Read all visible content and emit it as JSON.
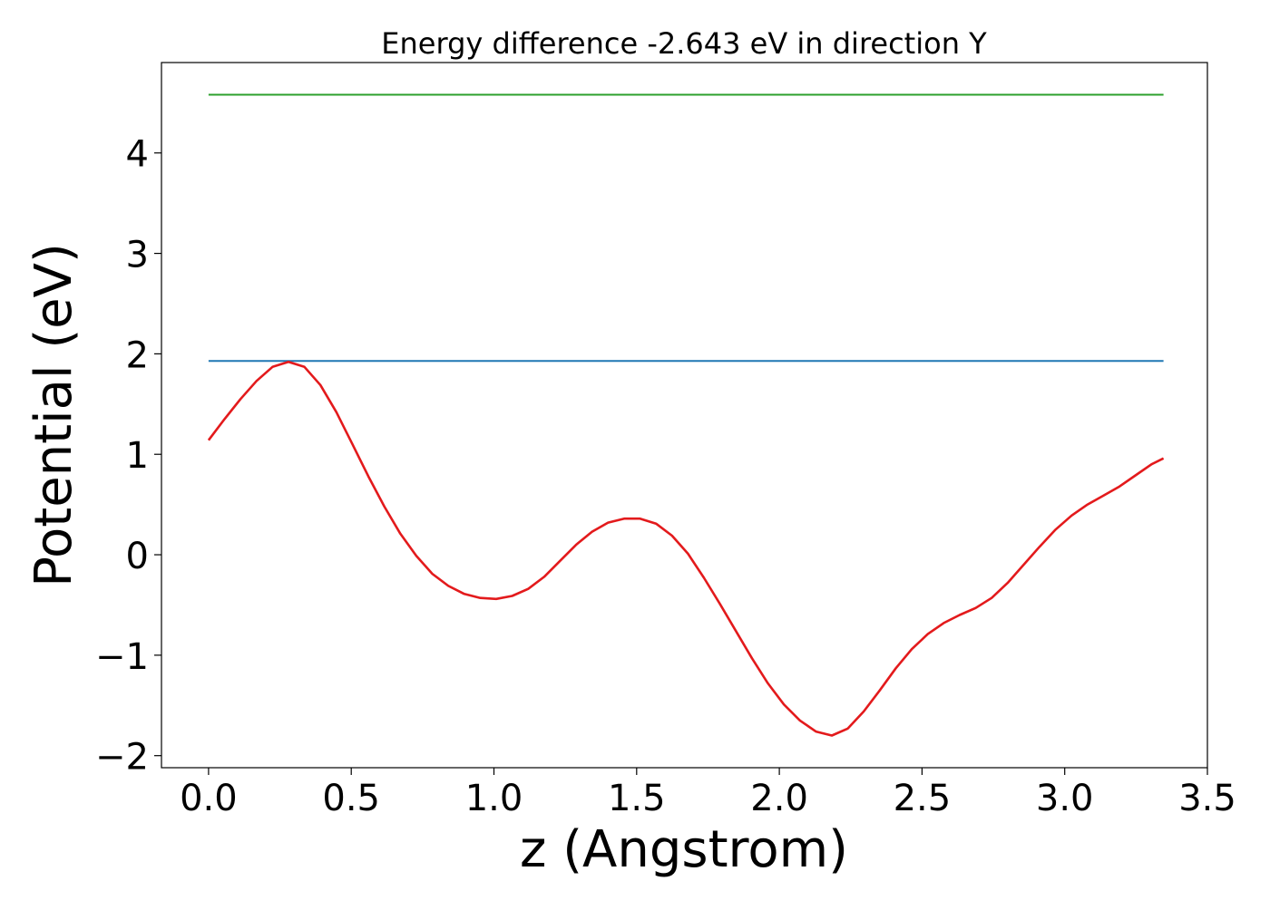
{
  "chart_data": {
    "type": "line",
    "title": "Energy difference -2.643 eV in direction Y",
    "xlabel": "z (Angstrom)",
    "ylabel": "Potential (eV)",
    "xlim": [
      -0.165,
      3.5
    ],
    "ylim": [
      -2.12,
      4.9
    ],
    "grid": false,
    "x_ticks": [
      {
        "value": 0.0,
        "label": "0.0"
      },
      {
        "value": 0.5,
        "label": "0.5"
      },
      {
        "value": 1.0,
        "label": "1.0"
      },
      {
        "value": 1.5,
        "label": "1.5"
      },
      {
        "value": 2.0,
        "label": "2.0"
      },
      {
        "value": 2.5,
        "label": "2.5"
      },
      {
        "value": 3.0,
        "label": "3.0"
      },
      {
        "value": 3.5,
        "label": "3.5"
      }
    ],
    "y_ticks": [
      {
        "value": -2,
        "label": "−2"
      },
      {
        "value": -1,
        "label": "−1"
      },
      {
        "value": 0,
        "label": "0"
      },
      {
        "value": 1,
        "label": "1"
      },
      {
        "value": 2,
        "label": "2"
      },
      {
        "value": 3,
        "label": "3"
      },
      {
        "value": 4,
        "label": "4"
      }
    ],
    "series": [
      {
        "color": "#2ca02c",
        "x": [
          0.0,
          3.346
        ],
        "y": [
          4.58,
          4.58
        ]
      },
      {
        "color": "#1f77b4",
        "x": [
          0.0,
          3.346
        ],
        "y": [
          1.93,
          1.93
        ]
      },
      {
        "color": "#e31a1c",
        "x": [
          0.0,
          0.056,
          0.112,
          0.168,
          0.224,
          0.28,
          0.336,
          0.392,
          0.448,
          0.504,
          0.56,
          0.616,
          0.672,
          0.728,
          0.784,
          0.84,
          0.896,
          0.952,
          1.008,
          1.064,
          1.12,
          1.176,
          1.232,
          1.288,
          1.344,
          1.4,
          1.456,
          1.512,
          1.568,
          1.624,
          1.68,
          1.736,
          1.792,
          1.848,
          1.904,
          1.96,
          2.016,
          2.072,
          2.128,
          2.184,
          2.24,
          2.296,
          2.352,
          2.408,
          2.464,
          2.52,
          2.576,
          2.632,
          2.688,
          2.744,
          2.8,
          2.856,
          2.912,
          2.968,
          3.024,
          3.08,
          3.136,
          3.192,
          3.248,
          3.304,
          3.346
        ],
        "y": [
          1.14,
          1.35,
          1.55,
          1.73,
          1.87,
          1.92,
          1.87,
          1.69,
          1.42,
          1.1,
          0.78,
          0.48,
          0.21,
          -0.01,
          -0.19,
          -0.31,
          -0.39,
          -0.43,
          -0.44,
          -0.41,
          -0.34,
          -0.22,
          -0.06,
          0.1,
          0.23,
          0.32,
          0.36,
          0.36,
          0.31,
          0.19,
          0.01,
          -0.23,
          -0.49,
          -0.76,
          -1.03,
          -1.28,
          -1.49,
          -1.65,
          -1.76,
          -1.8,
          -1.73,
          -1.56,
          -1.35,
          -1.13,
          -0.94,
          -0.79,
          -0.68,
          -0.6,
          -0.53,
          -0.43,
          -0.28,
          -0.1,
          0.08,
          0.25,
          0.39,
          0.5,
          0.59,
          0.68,
          0.79,
          0.9,
          0.96
        ]
      }
    ]
  }
}
